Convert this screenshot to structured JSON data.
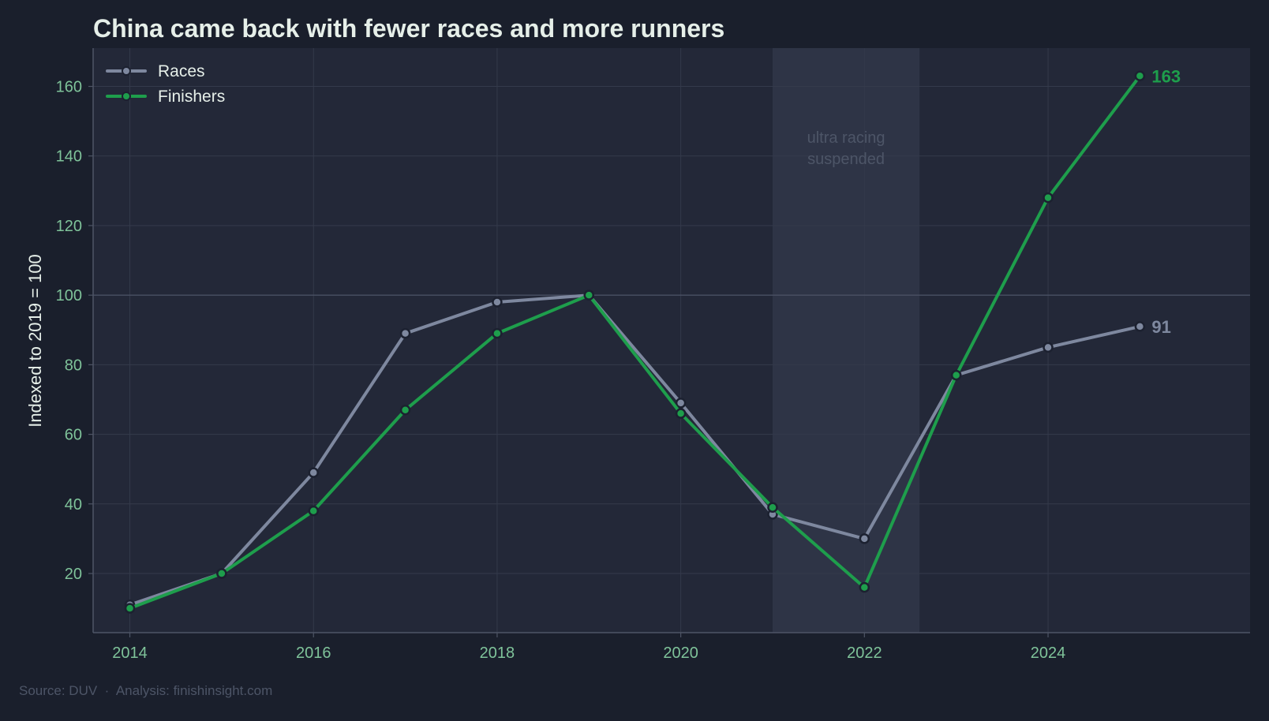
{
  "title": "China came back with fewer races and more runners",
  "source_note": "Source: DUV  ·  Analysis: finishinsight.com",
  "colors": {
    "background": "#1a1f2c",
    "plot_background": "#232838",
    "shade_band": "#2e3446",
    "grid": "#343a4b",
    "axis": "#4e5566",
    "tick_text": "#7fc39a",
    "title_text": "#e6efe9",
    "ylabel_text": "#e6efe9",
    "legend_text": "#e6efe9",
    "annotation_text": "#4d5567",
    "source_text": "#4d5567",
    "races": "#7e889f",
    "finishers": "#1e9e4c",
    "marker_edge": "#1c2130"
  },
  "chart_data": {
    "type": "line",
    "title": "China came back with fewer races and more runners",
    "xlabel": "",
    "ylabel": "Indexed to 2019 = 100",
    "x": [
      2014,
      2015,
      2016,
      2017,
      2018,
      2019,
      2020,
      2021,
      2022,
      2023,
      2024,
      2025
    ],
    "xlim": [
      2013.6,
      2026.2
    ],
    "ylim": [
      3,
      171
    ],
    "x_ticks": [
      2014,
      2016,
      2018,
      2020,
      2022,
      2024
    ],
    "y_ticks": [
      20,
      40,
      60,
      80,
      100,
      120,
      140,
      160
    ],
    "grid": true,
    "reference_line": 100,
    "legend": {
      "position": "top-left"
    },
    "series": [
      {
        "name": "Races",
        "color": "#7e889f",
        "values": [
          11,
          20,
          49,
          89,
          98,
          100,
          69,
          37,
          30,
          77,
          85,
          91
        ],
        "end_label": "91"
      },
      {
        "name": "Finishers",
        "color": "#1e9e4c",
        "values": [
          10,
          20,
          38,
          67,
          89,
          100,
          66,
          39,
          16,
          77,
          128,
          163
        ],
        "end_label": "163"
      }
    ],
    "shaded_region": {
      "x_start": 2021,
      "x_end": 2022.6,
      "label_lines": [
        "ultra racing",
        "suspended"
      ]
    }
  }
}
